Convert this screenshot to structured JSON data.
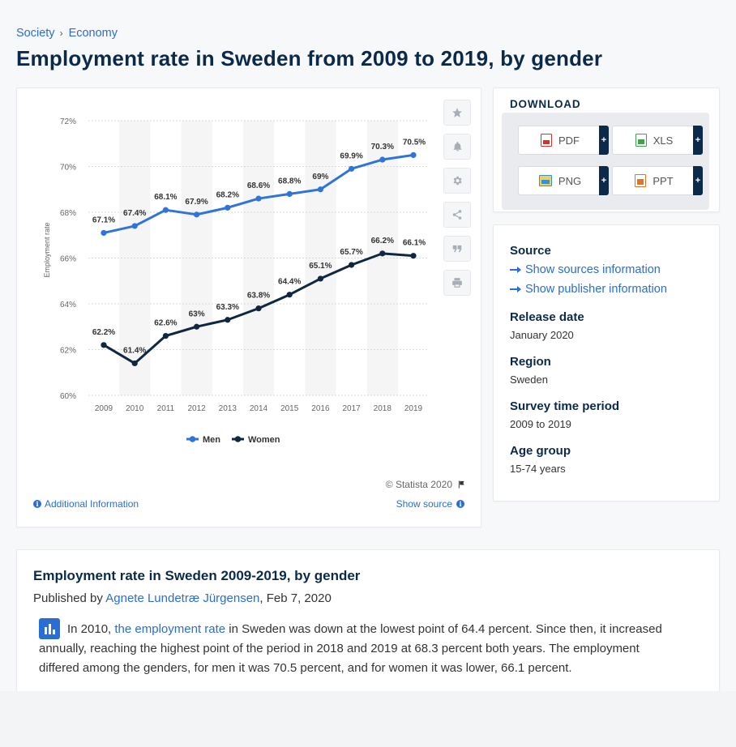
{
  "breadcrumb": {
    "item1": "Society",
    "item2": "Economy",
    "separator": "›"
  },
  "page_title": "Employment rate in Sweden from 2009 to 2019, by gender",
  "chart_data": {
    "type": "line",
    "title": "Employment rate in Sweden from 2009 to 2019, by gender",
    "xlabel": "",
    "ylabel": "Employment rate",
    "categories": [
      "2009",
      "2010",
      "2011",
      "2012",
      "2013",
      "2014",
      "2015",
      "2016",
      "2017",
      "2018",
      "2019"
    ],
    "ylim": [
      60,
      72
    ],
    "yticks": [
      "72%",
      "70%",
      "68%",
      "66%",
      "64%",
      "62%",
      "60%"
    ],
    "ytick_values": [
      72,
      70,
      68,
      66,
      64,
      62,
      60
    ],
    "series": [
      {
        "name": "Men",
        "color": "#2f74d8",
        "values": [
          67.1,
          67.4,
          68.1,
          67.9,
          68.2,
          68.6,
          68.8,
          69,
          69.9,
          70.3,
          70.5
        ],
        "labels": [
          "67.1%",
          "67.4%",
          "68.1%",
          "67.9%",
          "68.2%",
          "68.6%",
          "68.8%",
          "69%",
          "69.9%",
          "70.3%",
          "70.5%"
        ]
      },
      {
        "name": "Women",
        "color": "#0f2740",
        "values": [
          62.2,
          61.4,
          62.6,
          63,
          63.3,
          63.8,
          64.4,
          65.1,
          65.7,
          66.2,
          66.1
        ],
        "labels": [
          "62.2%",
          "61.4%",
          "62.6%",
          "63%",
          "63.3%",
          "63.8%",
          "64.4%",
          "65.1%",
          "65.7%",
          "66.2%",
          "66.1%"
        ]
      }
    ],
    "legend": "bottom-center"
  },
  "chart_footer": {
    "copyright": "© Statista 2020",
    "additional_info": "Additional Information",
    "show_source": "Show source"
  },
  "sidebar_icons": [
    "star-icon",
    "bell-icon",
    "gear-icon",
    "share-icon",
    "quote-icon",
    "print-icon"
  ],
  "download": {
    "title": "DOWNLOAD",
    "buttons": [
      {
        "label": "PDF",
        "icon": "pdf-file-icon",
        "color": "#d9302c"
      },
      {
        "label": "XLS",
        "icon": "xls-file-icon",
        "color": "#3ea34a"
      },
      {
        "label": "PNG",
        "icon": "png-file-icon",
        "color": "#3a8fd8"
      },
      {
        "label": "PPT",
        "icon": "ppt-file-icon",
        "color": "#e0742a"
      }
    ],
    "plus": "+"
  },
  "info": {
    "source_heading": "Source",
    "show_sources": "Show sources information",
    "show_publisher": "Show publisher information",
    "release_heading": "Release date",
    "release_value": "January 2020",
    "region_heading": "Region",
    "region_value": "Sweden",
    "survey_heading": "Survey time period",
    "survey_value": "2009 to 2019",
    "age_heading": "Age group",
    "age_value": "15-74 years"
  },
  "article": {
    "title": "Employment rate in Sweden 2009-2019, by gender",
    "published_prefix": "Published by",
    "author": "Agnete Lundetræ Jürgensen",
    "date": ", Feb 7, 2020",
    "text_1": "In 2010, ",
    "link": "the employment rate",
    "text_2": " in Sweden was down at the lowest point of 64.4 percent. Since then, it increased annually, reaching the highest point of the period in 2018 and 2019 at 68.3 percent both years. The employment differed among the genders, for men it was 70.5 percent, and for women it was lower, 66.1 percent."
  }
}
